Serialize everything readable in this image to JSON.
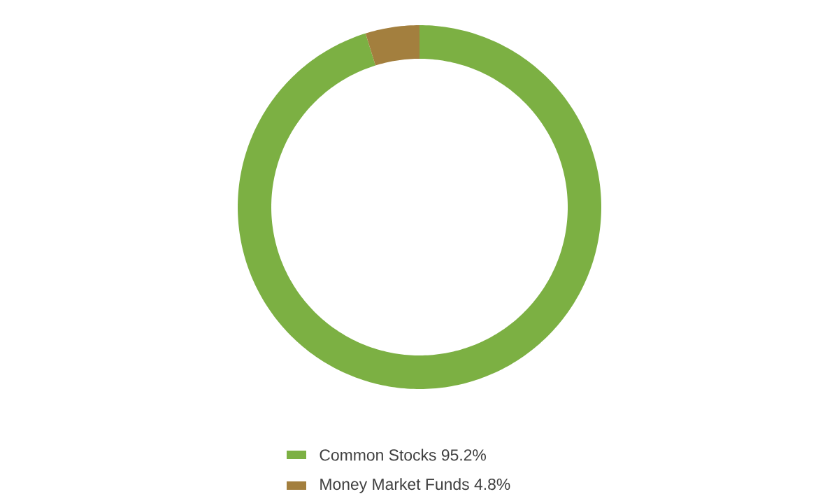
{
  "chart_data": {
    "type": "donut",
    "categories": [
      "Common Stocks",
      "Money Market Funds"
    ],
    "values": [
      95.2,
      4.8
    ],
    "value_labels": [
      "95.2%",
      "4.8%"
    ],
    "colors": [
      "#7cb043",
      "#a37f3e"
    ],
    "legend": "bottom"
  }
}
